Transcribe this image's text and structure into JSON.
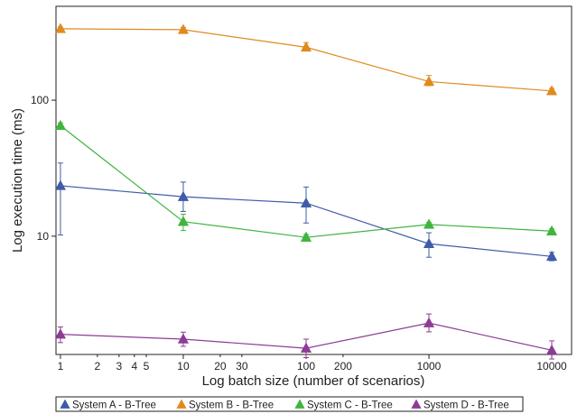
{
  "chart_data": {
    "type": "line",
    "xlabel": "Log batch size (number of scenarios)",
    "ylabel": "Log execution time (ms)",
    "x_scale": "log",
    "y_scale": "log",
    "xlim": [
      0.92,
      14500
    ],
    "ylim": [
      1.35,
      490
    ],
    "x_ticks": [
      {
        "value": 1,
        "label": "1"
      },
      {
        "value": 2,
        "label": "2"
      },
      {
        "value": 3,
        "label": "3"
      },
      {
        "value": 4,
        "label": "4"
      },
      {
        "value": 5,
        "label": "5"
      },
      {
        "value": 10,
        "label": "10"
      },
      {
        "value": 20,
        "label": "20"
      },
      {
        "value": 30,
        "label": "30"
      },
      {
        "value": 100,
        "label": "100"
      },
      {
        "value": 200,
        "label": "200"
      },
      {
        "value": 1000,
        "label": "1000"
      },
      {
        "value": 10000,
        "label": "10000"
      }
    ],
    "y_ticks": [
      {
        "value": 10,
        "label": "10"
      },
      {
        "value": 100,
        "label": "100"
      }
    ],
    "grid": false,
    "legend_position": "bottom",
    "x": [
      1,
      10,
      100,
      1000,
      10000
    ],
    "series": [
      {
        "name": "System A - B-Tree",
        "color": "#3f5ca8",
        "values": [
          23.5,
          19.5,
          17.5,
          8.8,
          7.1
        ],
        "error_low": [
          10.2,
          15.2,
          12.5,
          7.0,
          6.6
        ],
        "error_high": [
          34.5,
          25.0,
          23.0,
          10.6,
          7.6
        ]
      },
      {
        "name": "System B  - B-Tree",
        "color": "#e08a1e",
        "values": [
          335,
          330,
          245,
          137,
          117
        ],
        "error_low": [
          325,
          318,
          230,
          128,
          112
        ],
        "error_high": [
          345,
          342,
          265,
          152,
          122
        ]
      },
      {
        "name": "System C - B-Tree",
        "color": "#3fb53f",
        "values": [
          65,
          12.8,
          9.8,
          12.2,
          10.9
        ],
        "error_low": [
          62,
          11.0,
          9.3,
          11.8,
          10.5
        ],
        "error_high": [
          68,
          14.5,
          10.3,
          12.6,
          11.3
        ]
      },
      {
        "name": "System D - B-Tree",
        "color": "#8e3b96",
        "values": [
          1.9,
          1.75,
          1.5,
          2.3,
          1.45
        ],
        "error_low": [
          1.65,
          1.55,
          1.28,
          1.98,
          1.25
        ],
        "error_high": [
          2.15,
          1.97,
          1.75,
          2.68,
          1.7
        ]
      }
    ]
  }
}
